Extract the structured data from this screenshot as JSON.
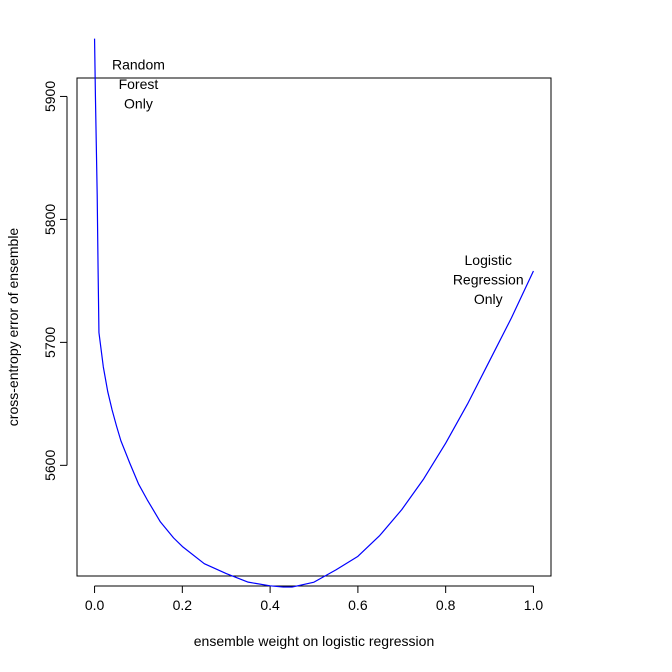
{
  "chart_data": {
    "type": "line",
    "title": "",
    "xlabel": "ensemble weight on logistic regression",
    "ylabel": "cross-entropy error of ensemble",
    "xlim": [
      -0.04,
      1.04
    ],
    "ylim": [
      5510,
      5915
    ],
    "grid": false,
    "x_ticks": [
      0.0,
      0.2,
      0.4,
      0.6,
      0.8,
      1.0
    ],
    "x_tick_labels": [
      "0.0",
      "0.2",
      "0.4",
      "0.6",
      "0.8",
      "1.0"
    ],
    "y_ticks": [
      5600,
      5700,
      5800,
      5900
    ],
    "y_tick_labels": [
      "5600",
      "5700",
      "5800",
      "5900"
    ],
    "series": [
      {
        "color": "#0000ff",
        "x": [
          0.0,
          0.002,
          0.004,
          0.006,
          0.008,
          0.01,
          0.02,
          0.03,
          0.04,
          0.05,
          0.06,
          0.08,
          0.1,
          0.12,
          0.15,
          0.18,
          0.2,
          0.25,
          0.3,
          0.35,
          0.4,
          0.43,
          0.45,
          0.5,
          0.55,
          0.6,
          0.65,
          0.7,
          0.75,
          0.8,
          0.85,
          0.9,
          0.95,
          1.0
        ],
        "y": [
          5947,
          5900,
          5860,
          5820,
          5760,
          5708,
          5680,
          5660,
          5645,
          5632,
          5620,
          5602,
          5585,
          5572,
          5554,
          5541,
          5534,
          5520,
          5512,
          5505,
          5502,
          5501,
          5501,
          5505,
          5515,
          5526,
          5543,
          5564,
          5589,
          5618,
          5650,
          5685,
          5720,
          5758
        ]
      }
    ],
    "annotations": [
      {
        "lines": [
          "Random",
          "Forest",
          "Only"
        ],
        "x": 0.1,
        "y": 5922
      },
      {
        "lines": [
          "Logistic",
          "Regression",
          "Only"
        ],
        "x": 0.897,
        "y": 5763
      }
    ]
  }
}
